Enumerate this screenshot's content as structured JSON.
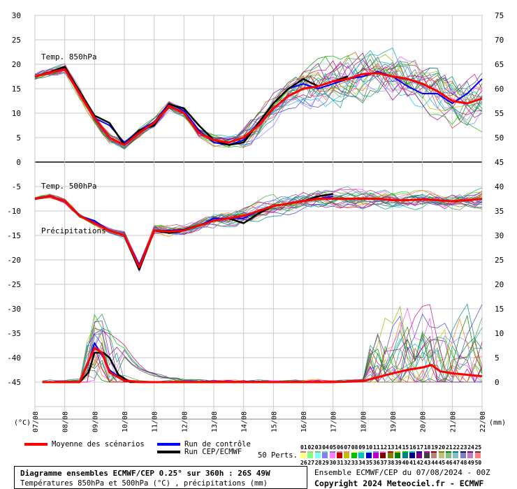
{
  "chart_data": [
    {
      "type": "line",
      "title": "Temp. 850hPa",
      "ylim": [
        0,
        30
      ],
      "left_ticks": [
        "30",
        "25",
        "20",
        "15",
        "10",
        "5",
        "0"
      ],
      "x_start": 0,
      "x_end": 15,
      "mean": [
        [
          0,
          17.5
        ],
        [
          0.5,
          18.3
        ],
        [
          1,
          19
        ],
        [
          1.5,
          14
        ],
        [
          2,
          9
        ],
        [
          2.5,
          5
        ],
        [
          3,
          3.5
        ],
        [
          3.5,
          6
        ],
        [
          4,
          8
        ],
        [
          4.5,
          11.5
        ],
        [
          5,
          10
        ],
        [
          5.5,
          6
        ],
        [
          6,
          4.5
        ],
        [
          6.5,
          4
        ],
        [
          7,
          5
        ],
        [
          7.5,
          7.5
        ],
        [
          8,
          11
        ],
        [
          8.5,
          13.5
        ],
        [
          9,
          15
        ],
        [
          9.5,
          15.5
        ],
        [
          10,
          16.5
        ],
        [
          10.5,
          17
        ],
        [
          11,
          18
        ],
        [
          11.5,
          18.2
        ],
        [
          12,
          17.5
        ],
        [
          12.5,
          17
        ],
        [
          13,
          16
        ],
        [
          13.5,
          14.5
        ],
        [
          14,
          12.5
        ],
        [
          14.5,
          12
        ],
        [
          15,
          13
        ]
      ],
      "control": [
        [
          0,
          17.5
        ],
        [
          0.5,
          18.4
        ],
        [
          1,
          19.2
        ],
        [
          1.5,
          14.5
        ],
        [
          2,
          9
        ],
        [
          2.5,
          7.5
        ],
        [
          3,
          4
        ],
        [
          3.5,
          6.5
        ],
        [
          4,
          8.2
        ],
        [
          4.5,
          12
        ],
        [
          5,
          10.5
        ],
        [
          5.5,
          6.5
        ],
        [
          6,
          4
        ],
        [
          6.5,
          3.5
        ],
        [
          7,
          4.5
        ],
        [
          7.5,
          8
        ],
        [
          8,
          12
        ],
        [
          8.5,
          15
        ],
        [
          9,
          16
        ],
        [
          9.5,
          15
        ],
        [
          10,
          16
        ],
        [
          10.5,
          17
        ],
        [
          11,
          17.5
        ],
        [
          11.5,
          18.5
        ],
        [
          12,
          17.5
        ],
        [
          12.5,
          15.5
        ],
        [
          13,
          14
        ],
        [
          13.5,
          14
        ],
        [
          14,
          12
        ],
        [
          14.5,
          14
        ],
        [
          15,
          17
        ]
      ],
      "deterministic": [
        [
          0,
          17.5
        ],
        [
          0.5,
          18.4
        ],
        [
          1,
          19.5
        ],
        [
          1.5,
          14.5
        ],
        [
          2,
          9.5
        ],
        [
          2.5,
          8
        ],
        [
          3,
          3.5
        ],
        [
          3.5,
          6.5
        ],
        [
          4,
          7.5
        ],
        [
          4.5,
          11.8
        ],
        [
          5,
          11
        ],
        [
          5.5,
          7.5
        ],
        [
          6,
          4.5
        ],
        [
          6.5,
          3.5
        ],
        [
          7,
          4
        ],
        [
          7.5,
          8
        ],
        [
          8,
          12
        ],
        [
          8.5,
          15
        ],
        [
          9,
          17
        ],
        [
          9.5,
          15.5
        ],
        [
          10,
          16.5
        ],
        [
          10.5,
          17.5
        ]
      ]
    },
    {
      "type": "line",
      "title": "Temp. 500hPa",
      "ylim": [
        -45,
        0
      ],
      "left_ticks": [
        "-5",
        "-10",
        "-15",
        "-20",
        "-25",
        "-30",
        "-35",
        "-40",
        "-45"
      ],
      "mean": [
        [
          0,
          -7.5
        ],
        [
          0.5,
          -7
        ],
        [
          1,
          -8
        ],
        [
          1.5,
          -11
        ],
        [
          2,
          -12.5
        ],
        [
          2.5,
          -14
        ],
        [
          3,
          -15
        ],
        [
          3.5,
          -21.5
        ],
        [
          4,
          -14
        ],
        [
          4.5,
          -14.2
        ],
        [
          5,
          -14
        ],
        [
          5.5,
          -13
        ],
        [
          6,
          -12
        ],
        [
          6.5,
          -11.5
        ],
        [
          7,
          -11
        ],
        [
          7.5,
          -10
        ],
        [
          8,
          -9
        ],
        [
          8.5,
          -8.5
        ],
        [
          9,
          -8
        ],
        [
          9.5,
          -7.5
        ],
        [
          10,
          -7.5
        ],
        [
          10.5,
          -7.5
        ],
        [
          11,
          -7.5
        ],
        [
          11.5,
          -7.5
        ],
        [
          12,
          -7.8
        ],
        [
          12.5,
          -7.8
        ],
        [
          13,
          -7.6
        ],
        [
          13.5,
          -7.8
        ],
        [
          14,
          -8
        ],
        [
          14.5,
          -7.8
        ],
        [
          15,
          -7.5
        ]
      ],
      "control": [
        [
          0,
          -7.5
        ],
        [
          0.5,
          -7
        ],
        [
          1,
          -8
        ],
        [
          1.5,
          -11
        ],
        [
          2,
          -12
        ],
        [
          2.5,
          -14
        ],
        [
          3,
          -15
        ],
        [
          3.5,
          -21
        ],
        [
          4,
          -14
        ],
        [
          4.5,
          -14
        ],
        [
          5,
          -13.8
        ],
        [
          5.5,
          -13
        ],
        [
          6,
          -11.5
        ],
        [
          6.5,
          -11.5
        ],
        [
          7,
          -11.5
        ],
        [
          7.5,
          -10
        ],
        [
          8,
          -9
        ],
        [
          8.5,
          -8.5
        ],
        [
          9,
          -8
        ],
        [
          9.5,
          -7.5
        ],
        [
          10,
          -7
        ]
      ],
      "deterministic": [
        [
          0,
          -7.5
        ],
        [
          0.5,
          -7
        ],
        [
          1,
          -8
        ],
        [
          1.5,
          -11
        ],
        [
          2,
          -12.5
        ],
        [
          2.5,
          -14
        ],
        [
          3,
          -15
        ],
        [
          3.5,
          -22
        ],
        [
          4,
          -14
        ],
        [
          4.5,
          -14.5
        ],
        [
          5,
          -14
        ],
        [
          5.5,
          -13
        ],
        [
          6,
          -12
        ],
        [
          6.5,
          -11.5
        ],
        [
          7,
          -12.5
        ],
        [
          7.5,
          -10.5
        ],
        [
          8,
          -9
        ],
        [
          8.5,
          -8.5
        ],
        [
          9,
          -8
        ],
        [
          9.5,
          -7
        ],
        [
          10,
          -6.5
        ]
      ]
    },
    {
      "type": "line",
      "title": "Précipitations",
      "right_label": "(mm)",
      "ylim": [
        0,
        75
      ],
      "right_ticks": [
        "75",
        "70",
        "65",
        "60",
        "55",
        "50",
        "45",
        "40",
        "35",
        "30",
        "25",
        "20",
        "15",
        "10",
        "5",
        "0"
      ],
      "mean": [
        [
          0.25,
          0
        ],
        [
          1.5,
          0
        ],
        [
          2,
          7
        ],
        [
          2.25,
          6
        ],
        [
          2.5,
          2
        ],
        [
          3,
          0.3
        ],
        [
          3.5,
          0
        ],
        [
          5,
          0
        ],
        [
          10,
          0
        ],
        [
          11,
          0.2
        ],
        [
          11.5,
          1
        ],
        [
          12,
          1.8
        ],
        [
          12.5,
          2.5
        ],
        [
          13,
          3
        ],
        [
          13.3,
          3.5
        ],
        [
          13.6,
          2.2
        ],
        [
          14,
          1.8
        ],
        [
          14.5,
          1.5
        ],
        [
          15,
          1.2
        ]
      ],
      "control": [
        [
          0.25,
          0
        ],
        [
          1.5,
          0
        ],
        [
          1.8,
          4
        ],
        [
          2,
          8
        ],
        [
          2.3,
          5
        ],
        [
          2.5,
          2.5
        ],
        [
          3,
          0.2
        ],
        [
          3.5,
          0
        ],
        [
          10,
          0
        ]
      ],
      "deterministic": [
        [
          0.25,
          0
        ],
        [
          1.5,
          0
        ],
        [
          1.8,
          2
        ],
        [
          2,
          6
        ],
        [
          2.3,
          6
        ],
        [
          2.5,
          5
        ],
        [
          2.8,
          1.5
        ],
        [
          3.2,
          0
        ],
        [
          10,
          0
        ]
      ]
    }
  ],
  "axis": {
    "left_unit": "(°C)",
    "right_unit": "(mm)",
    "x_tick_labels": [
      "07/08",
      "08/08",
      "09/08",
      "10/08",
      "11/08",
      "12/08",
      "13/08",
      "14/08",
      "15/08",
      "16/08",
      "17/08",
      "18/08",
      "19/08",
      "20/08",
      "21/08",
      "22/08"
    ]
  },
  "legend": {
    "mean_label": "Moyenne des scénarios",
    "mean_color": "#ff0000",
    "control_label": "Run de contrôle",
    "control_color": "#0000ff",
    "det_label": "Run CEP/ECMWF",
    "det_color": "#000000",
    "perts_label": "50 Perts.",
    "perts_row1": [
      "01",
      "02",
      "03",
      "04",
      "05",
      "06",
      "07",
      "08",
      "09",
      "10",
      "11",
      "12",
      "13",
      "14",
      "15",
      "16",
      "17",
      "18",
      "19",
      "20",
      "21",
      "22",
      "23",
      "24",
      "25"
    ],
    "perts_row2": [
      "26",
      "27",
      "28",
      "29",
      "30",
      "31",
      "32",
      "33",
      "34",
      "35",
      "36",
      "37",
      "38",
      "39",
      "40",
      "41",
      "42",
      "43",
      "44",
      "45",
      "46",
      "47",
      "48",
      "49",
      "50"
    ]
  },
  "info": {
    "line1": "Diagramme ensembles ECMWF/CEP 0.25° sur 360h : 26S 49W",
    "line2": "Températures 850hPa et 500hPa (°C) , précipitations (mm)"
  },
  "ensemble_info": "Ensemble ECMWF/CEP du 07/08/2024 - 00Z",
  "copyright": "Copyright 2024 Meteociel.fr - ECMWF"
}
